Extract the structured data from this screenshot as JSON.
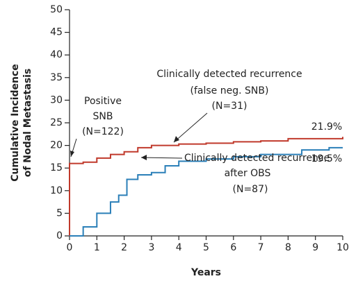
{
  "chart_data": {
    "type": "step",
    "x_label": "Years",
    "y_label": [
      "Cumulative Incidence",
      "of Nodal Metastasis"
    ],
    "xlim": [
      0,
      10
    ],
    "xticks": [
      0,
      1,
      2,
      3,
      4,
      5,
      6,
      7,
      8,
      9,
      10
    ],
    "ylim": [
      0,
      50
    ],
    "yticks": [
      0,
      5,
      10,
      15,
      20,
      25,
      30,
      35,
      40,
      45,
      50
    ],
    "series": [
      {
        "name": "SNB",
        "color": "#c0392b",
        "x": [
          0,
          0,
          0.5,
          1,
          1.5,
          2,
          2.5,
          3,
          4,
          5,
          6,
          7,
          8,
          10
        ],
        "values": [
          0,
          16,
          16.3,
          17.2,
          18,
          18.6,
          19.5,
          20,
          20.3,
          20.5,
          20.8,
          21,
          21.5,
          21.9
        ],
        "value_labels": [
          null,
          null,
          null,
          null,
          null,
          null,
          null,
          null,
          null,
          null,
          null,
          null,
          null,
          "21.9%"
        ]
      },
      {
        "name": "OBS",
        "color": "#2a7fb8",
        "x": [
          0,
          0.5,
          1,
          1.5,
          1.8,
          2.1,
          2.5,
          3,
          3.5,
          4,
          5,
          6,
          7,
          8.5,
          9.5,
          10
        ],
        "values": [
          0,
          2,
          5,
          7.5,
          9,
          12.5,
          13.5,
          14,
          15.5,
          16.5,
          17,
          17.5,
          18,
          19,
          19.5,
          19.5
        ],
        "value_labels": [
          null,
          null,
          null,
          null,
          null,
          null,
          null,
          null,
          null,
          null,
          null,
          null,
          null,
          null,
          null,
          "19.5%"
        ]
      }
    ],
    "annotations": [
      [
        "Clinically detected recurrence",
        "(false neg. SNB)",
        "(N=31)"
      ],
      [
        "Positive",
        "SNB",
        "(N=122)"
      ],
      [
        "Clinically detected recurrence",
        "after OBS",
        "(N=87)"
      ]
    ]
  }
}
